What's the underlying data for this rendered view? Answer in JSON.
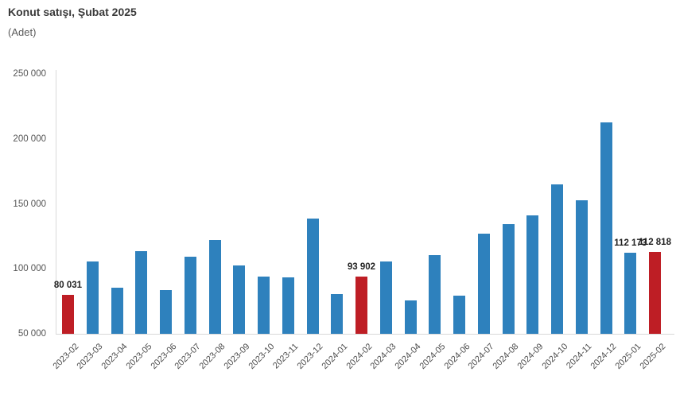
{
  "header": {
    "title": "Konut satışı, Şubat 2025",
    "subtitle": "(Adet)"
  },
  "colors": {
    "bar_default": "#2e81bd",
    "bar_highlight": "#be1e25",
    "axis_line": "#d9d9d9",
    "tick_text": "#555555",
    "title_text": "#3a3a3a"
  },
  "chart_data": {
    "type": "bar",
    "title": "Konut satışı, Şubat 2025",
    "unit_label": "(Adet)",
    "xlabel": "",
    "ylabel": "Adet",
    "ylim": [
      50000,
      250000
    ],
    "grid": false,
    "legend": false,
    "categories": [
      "2023-02",
      "2023-03",
      "2023-04",
      "2023-05",
      "2023-06",
      "2023-07",
      "2023-08",
      "2023-09",
      "2023-10",
      "2023-11",
      "2023-12",
      "2024-01",
      "2024-02",
      "2024-03",
      "2024-04",
      "2024-05",
      "2024-06",
      "2024-07",
      "2024-08",
      "2024-09",
      "2024-10",
      "2024-11",
      "2024-12",
      "2025-01",
      "2025-02"
    ],
    "values": [
      80031,
      105476,
      85652,
      113856,
      83636,
      109548,
      122091,
      102656,
      93761,
      93514,
      138577,
      80308,
      93902,
      105394,
      75569,
      110588,
      79313,
      127088,
      134155,
      140919,
      165138,
      153014,
      212637,
      112173,
      112818
    ],
    "highlighted_indices": [
      0,
      12,
      24
    ],
    "data_labels": [
      {
        "index": 0,
        "label": "80 031"
      },
      {
        "index": 12,
        "label": "93 902"
      },
      {
        "index": 23,
        "label": "112 173"
      },
      {
        "index": 24,
        "label": "112 818"
      }
    ],
    "y_axis": {
      "min": 50000,
      "max": 250000,
      "ticks": [
        {
          "value": 50000,
          "label": "50 000"
        },
        {
          "value": 100000,
          "label": "100 000"
        },
        {
          "value": 150000,
          "label": "150 000"
        },
        {
          "value": 200000,
          "label": "200 000"
        },
        {
          "value": 250000,
          "label": "250 000"
        }
      ]
    }
  }
}
